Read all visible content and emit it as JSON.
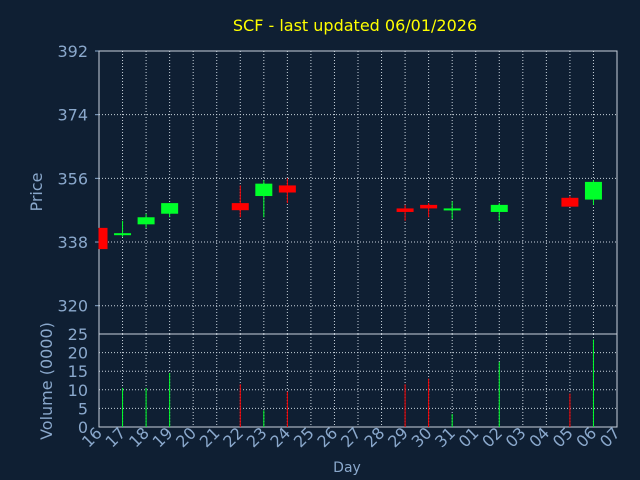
{
  "chart_data": {
    "type": "candlestick",
    "title": "SCF - last updated 06/01/2026",
    "title_color": "#ffff00",
    "background": "#0f1f33",
    "axis_label_color": "#8aa8cc",
    "up_color": "#00ff2a",
    "down_color": "#ff0000",
    "xlabel": "Day",
    "price_panel": {
      "ylabel": "Price",
      "ylim": [
        312,
        392
      ],
      "yticks": [
        320,
        338,
        356,
        374,
        392
      ],
      "grid": true
    },
    "volume_panel": {
      "ylabel": "Volume (0000)",
      "ylim": [
        0,
        25
      ],
      "yticks": [
        0,
        5,
        10,
        15,
        20,
        25
      ],
      "grid": true
    },
    "x_tick_labels": [
      "16",
      "17",
      "18",
      "19",
      "20",
      "21",
      "22",
      "23",
      "24",
      "25",
      "26",
      "27",
      "28",
      "29",
      "30",
      "31",
      "01",
      "02",
      "03",
      "04",
      "05",
      "06",
      "07"
    ],
    "candles": [
      {
        "day": "16",
        "open": 342,
        "high": 342,
        "low": 336,
        "close": 336,
        "volume": 0
      },
      {
        "day": "17",
        "open": 340,
        "high": 344,
        "low": 339.5,
        "close": 340.5,
        "volume": 10.5
      },
      {
        "day": "18",
        "open": 343,
        "high": 346,
        "low": 342,
        "close": 345,
        "volume": 10.5
      },
      {
        "day": "19",
        "open": 346,
        "high": 349,
        "low": 345,
        "close": 349,
        "volume": 14.5
      },
      {
        "day": "22",
        "open": 349,
        "high": 354,
        "low": 345,
        "close": 347,
        "volume": 11.5
      },
      {
        "day": "23",
        "open": 351,
        "high": 355.5,
        "low": 345,
        "close": 354.5,
        "volume": 4.5
      },
      {
        "day": "24",
        "open": 354,
        "high": 356,
        "low": 349,
        "close": 352,
        "volume": 9.5
      },
      {
        "day": "29",
        "open": 347.5,
        "high": 348.5,
        "low": 344,
        "close": 346.5,
        "volume": 11.5
      },
      {
        "day": "30",
        "open": 348.5,
        "high": 349,
        "low": 345,
        "close": 347.5,
        "volume": 13
      },
      {
        "day": "31",
        "open": 347,
        "high": 349.5,
        "low": 344.5,
        "close": 347.5,
        "volume": 3.5
      },
      {
        "day": "02",
        "open": 346.5,
        "high": 349,
        "low": 344,
        "close": 348.5,
        "volume": 17.5
      },
      {
        "day": "05",
        "open": 350.5,
        "high": 351,
        "low": 348,
        "close": 348,
        "volume": 9
      },
      {
        "day": "06",
        "open": 350,
        "high": 355.5,
        "low": 348.5,
        "close": 355,
        "volume": 23.5
      }
    ]
  }
}
